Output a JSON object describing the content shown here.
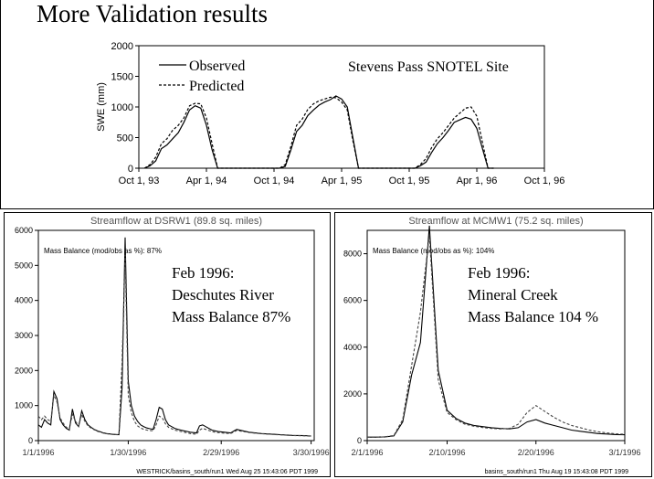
{
  "slide": {
    "title": "More Validation results"
  },
  "chart_data": [
    {
      "type": "line",
      "ylabel": "SWE (mm)",
      "ylim": [
        0,
        2000
      ],
      "yticks": [
        "0",
        "500",
        "1000",
        "1500",
        "2000"
      ],
      "xticks": [
        "Oct 1, 93",
        "Apr 1, 94",
        "Oct 1, 94",
        "Apr 1, 95",
        "Oct 1, 95",
        "Apr 1, 96",
        "Oct 1, 96"
      ],
      "xlim": [
        0,
        36
      ],
      "annotation": "Stevens Pass SNOTEL Site",
      "legend_position": "top-left",
      "series": [
        {
          "name": "Observed",
          "style": "solid",
          "x": [
            0.5,
            1.0,
            1.5,
            2.0,
            2.5,
            3.0,
            3.5,
            4.0,
            4.5,
            5.0,
            5.5,
            6.0,
            6.5,
            7.0,
            7.5,
            12.5,
            13.0,
            13.5,
            14.0,
            14.5,
            15.0,
            15.5,
            16.0,
            16.5,
            17.0,
            17.5,
            18.0,
            18.5,
            19.0,
            19.5,
            24.5,
            25.0,
            25.5,
            26.0,
            26.5,
            27.0,
            27.5,
            28.0,
            28.5,
            29.0,
            29.5,
            30.0,
            30.5,
            31.0,
            31.5
          ],
          "y": [
            0,
            40,
            120,
            320,
            380,
            480,
            580,
            750,
            950,
            1020,
            980,
            700,
            300,
            0,
            0,
            0,
            30,
            300,
            600,
            700,
            860,
            950,
            1030,
            1080,
            1120,
            1180,
            1130,
            1000,
            500,
            0,
            0,
            40,
            100,
            260,
            400,
            500,
            620,
            750,
            790,
            830,
            800,
            650,
            320,
            0,
            0
          ]
        },
        {
          "name": "Predicted",
          "style": "dashed",
          "x": [
            0.5,
            1.0,
            1.5,
            2.0,
            2.5,
            3.0,
            3.5,
            4.0,
            4.5,
            5.0,
            5.5,
            6.0,
            6.5,
            7.0,
            7.5,
            12.5,
            13.0,
            13.5,
            14.0,
            14.5,
            15.0,
            15.5,
            16.0,
            16.5,
            17.0,
            17.5,
            18.0,
            18.5,
            19.0,
            19.5,
            24.5,
            25.0,
            25.5,
            26.0,
            26.5,
            27.0,
            27.5,
            28.0,
            28.5,
            29.0,
            29.5,
            30.0,
            30.5,
            31.0,
            31.5
          ],
          "y": [
            0,
            60,
            180,
            400,
            480,
            620,
            700,
            820,
            1020,
            1060,
            1050,
            820,
            400,
            0,
            0,
            0,
            60,
            360,
            700,
            800,
            960,
            1050,
            1100,
            1130,
            1160,
            1150,
            1080,
            950,
            450,
            0,
            0,
            60,
            160,
            340,
            480,
            580,
            700,
            820,
            900,
            980,
            1000,
            850,
            420,
            0,
            0
          ]
        }
      ]
    },
    {
      "type": "line",
      "title": "Streamflow at DSRW1 (89.8 sq. miles)",
      "annotation_small": "Mass Balance (mod/obs as %): 87%",
      "note": [
        "Feb 1996:",
        "Deschutes River",
        "Mass Balance 87%"
      ],
      "footer": "WESTRICK/basins_south/run1 Wed Aug 25 15:43:06 PDT 1999",
      "ylim": [
        0,
        6000
      ],
      "yticks": [
        "0",
        "1000",
        "2000",
        "3000",
        "4000",
        "5000",
        "6000"
      ],
      "xlim": [
        0,
        89
      ],
      "xticks": [
        "1/1/1996",
        "1/30/1996",
        "2/29/1996",
        "3/30/1996"
      ],
      "xtick_values": [
        0,
        29,
        59,
        88
      ],
      "series": [
        {
          "name": "",
          "style": "solid",
          "x": [
            0,
            1,
            2,
            3,
            4,
            5,
            6,
            7,
            8,
            9,
            10,
            11,
            12,
            13,
            14,
            15,
            16,
            17,
            18,
            19,
            20,
            21,
            22,
            23,
            24,
            25,
            26,
            27,
            28,
            29,
            30,
            31,
            32,
            33,
            34,
            35,
            36,
            37,
            38,
            39,
            40,
            41,
            42,
            43,
            44,
            45,
            46,
            47,
            48,
            49,
            50,
            51,
            52,
            53,
            54,
            55,
            56,
            57,
            58,
            59,
            60,
            62,
            64,
            66,
            68,
            70,
            72,
            74,
            76,
            78,
            80,
            82,
            84,
            86,
            88
          ],
          "y": [
            450,
            380,
            600,
            500,
            450,
            1400,
            1200,
            600,
            450,
            350,
            300,
            900,
            500,
            400,
            850,
            600,
            450,
            380,
            320,
            280,
            250,
            220,
            200,
            190,
            180,
            175,
            170,
            1500,
            5800,
            1700,
            1000,
            700,
            550,
            450,
            400,
            360,
            340,
            320,
            600,
            950,
            900,
            600,
            450,
            400,
            350,
            320,
            300,
            280,
            260,
            240,
            230,
            220,
            420,
            450,
            400,
            350,
            300,
            280,
            260,
            250,
            240,
            220,
            320,
            280,
            240,
            220,
            200,
            190,
            180,
            170,
            160,
            150,
            145,
            140,
            130
          ]
        },
        {
          "name": "",
          "style": "dashed",
          "x": [
            0,
            1,
            2,
            3,
            4,
            5,
            6,
            7,
            8,
            9,
            10,
            11,
            12,
            13,
            14,
            15,
            16,
            17,
            18,
            19,
            20,
            21,
            22,
            23,
            24,
            25,
            26,
            27,
            28,
            29,
            30,
            31,
            32,
            33,
            34,
            35,
            36,
            37,
            38,
            39,
            40,
            41,
            42,
            43,
            44,
            45,
            46,
            47,
            48,
            49,
            50,
            51,
            52,
            53,
            54,
            55,
            56,
            57,
            58,
            59,
            60,
            62,
            64,
            66,
            68,
            70,
            72,
            74,
            76,
            78,
            80,
            82,
            84,
            86,
            88
          ],
          "y": [
            700,
            600,
            700,
            600,
            550,
            1300,
            1100,
            650,
            500,
            380,
            330,
            750,
            550,
            420,
            750,
            550,
            420,
            360,
            310,
            270,
            240,
            210,
            195,
            185,
            175,
            170,
            168,
            2200,
            5300,
            1300,
            800,
            550,
            420,
            360,
            320,
            300,
            290,
            280,
            450,
            700,
            650,
            480,
            380,
            340,
            300,
            280,
            260,
            240,
            220,
            200,
            190,
            180,
            300,
            350,
            320,
            290,
            260,
            240,
            230,
            220,
            210,
            200,
            290,
            260,
            230,
            210,
            195,
            185,
            175,
            165,
            155,
            145,
            140,
            135,
            125
          ]
        }
      ]
    },
    {
      "type": "line",
      "title": "Streamflow at MCMW1 (75.2 sq. miles)",
      "annotation_small": "Mass Balance (mod/obs as %): 104%",
      "note": [
        "Feb 1996:",
        "Mineral Creek",
        "Mass Balance 104 %"
      ],
      "footer": "basins_south/run1 Thu Aug 19 15:43:08 PDT 1999",
      "ylim": [
        0,
        9000
      ],
      "yticks": [
        "0",
        "2000",
        "4000",
        "6000",
        "8000"
      ],
      "xlim": [
        0,
        29
      ],
      "xticks": [
        "2/1/1996",
        "2/10/1996",
        "2/20/1996",
        "3/1/1996"
      ],
      "xtick_values": [
        0,
        9,
        19,
        29
      ],
      "series": [
        {
          "name": "",
          "style": "solid",
          "x": [
            0,
            1,
            2,
            3,
            4,
            5,
            6,
            7,
            8,
            9,
            10,
            11,
            12,
            13,
            14,
            15,
            16,
            17,
            18,
            19,
            20,
            21,
            22,
            23,
            24,
            25,
            26,
            27,
            28,
            29
          ],
          "y": [
            150,
            150,
            160,
            200,
            800,
            2800,
            4200,
            9200,
            3000,
            1300,
            950,
            750,
            650,
            600,
            550,
            520,
            500,
            550,
            800,
            900,
            750,
            650,
            550,
            450,
            400,
            350,
            300,
            280,
            260,
            250
          ]
        },
        {
          "name": "",
          "style": "dashed",
          "x": [
            0,
            1,
            2,
            3,
            4,
            5,
            6,
            7,
            8,
            9,
            10,
            11,
            12,
            13,
            14,
            15,
            16,
            17,
            18,
            19,
            20,
            21,
            22,
            23,
            24,
            25,
            26,
            27,
            28,
            29
          ],
          "y": [
            150,
            150,
            160,
            220,
            900,
            3200,
            5500,
            8800,
            2600,
            1200,
            900,
            700,
            620,
            560,
            520,
            500,
            520,
            700,
            1200,
            1500,
            1250,
            1000,
            800,
            650,
            550,
            450,
            380,
            330,
            290,
            270
          ]
        }
      ]
    }
  ]
}
